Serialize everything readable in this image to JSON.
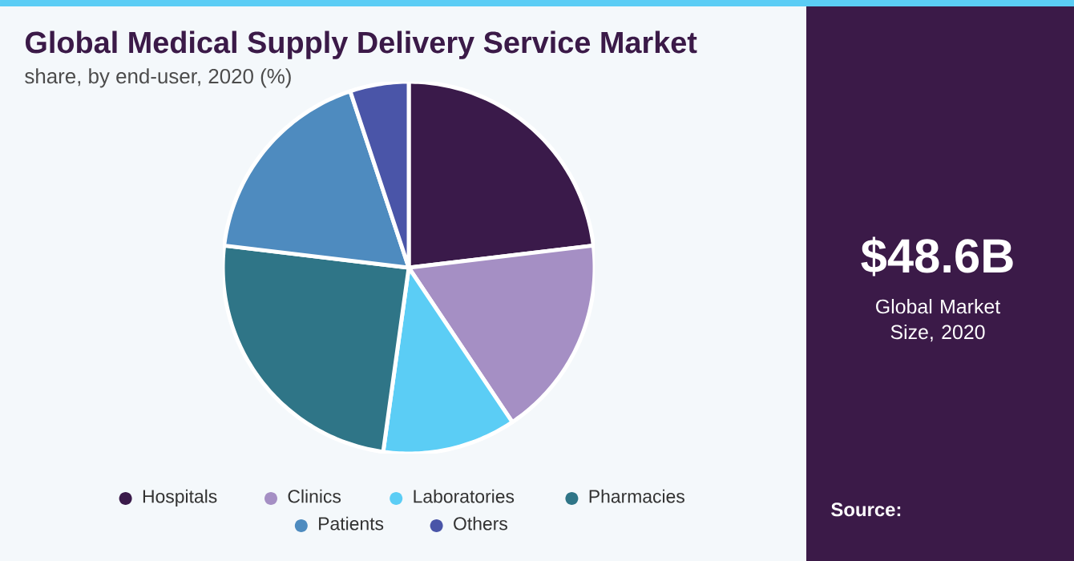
{
  "chart_data": {
    "type": "pie",
    "title": "Global Medical Supply Delivery Service Market",
    "subtitle": "share, by end-user, 2020 (%)",
    "categories": [
      "Hospitals",
      "Clinics",
      "Laboratories",
      "Pharmacies",
      "Patients",
      "Others"
    ],
    "values": [
      23.1,
      17.5,
      11.6,
      24.7,
      18.0,
      5.1
    ],
    "colors": [
      "#3a1a4a",
      "#a58fc4",
      "#5bcdf5",
      "#2f7587",
      "#4e8bbf",
      "#4a55a8"
    ],
    "legend": "bottom",
    "annotations": [
      "$48.6B",
      "Global Market Size, 2020",
      "Source:"
    ]
  }
}
